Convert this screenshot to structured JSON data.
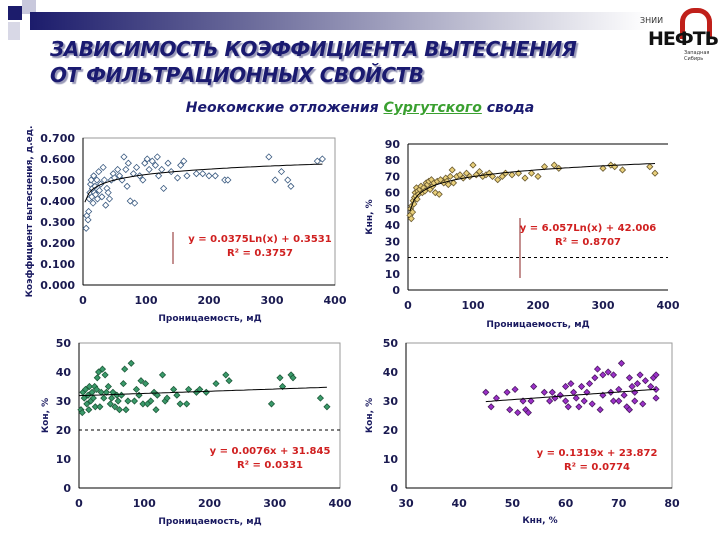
{
  "header": {
    "title_line1": "ЗАВИСИМОСТЬ КОЭФФИЦИЕНТА ВЫТЕСНЕНИЯ",
    "title_line2": "ОТ ФИЛЬТРАЦИОННЫХ СВОЙСТВ",
    "subtitle_pre": "Неокомские отложения ",
    "subtitle_hl": "Сургутского",
    "subtitle_post": " свода",
    "logo_top": "ЗНИИ",
    "logo_main": "НЕФТЬ",
    "logo_sub": "Западная Сибирь"
  },
  "colors": {
    "title": "#1a1a70",
    "equation": "#d02020",
    "highlight": "#3aa030"
  },
  "chart_data": [
    {
      "type": "scatter",
      "xlabel": "Проницаемость, мД",
      "ylabel": "Коэффициент вытеснения, д.ед.",
      "xlim": [
        0,
        400
      ],
      "ylim": [
        0,
        0.7
      ],
      "xticks": [
        "0",
        "100",
        "200",
        "300",
        "400"
      ],
      "yticks": [
        "0.000",
        "0.100",
        "0.200",
        "0.300",
        "0.400",
        "0.500",
        "0.600",
        "0.700"
      ],
      "marker_color": "#ffffff",
      "marker_stroke": "#3a5a80",
      "trend": {
        "kind": "log",
        "a": 0.0375,
        "b": 0.3531,
        "from": 3,
        "to": 380
      },
      "equation": "y = 0.0375Ln(x) + 0.3531",
      "r2": "R² = 0.3757",
      "points": [
        [
          5,
          0.27
        ],
        [
          6,
          0.33
        ],
        [
          8,
          0.31
        ],
        [
          9,
          0.35
        ],
        [
          10,
          0.41
        ],
        [
          11,
          0.44
        ],
        [
          12,
          0.48
        ],
        [
          13,
          0.5
        ],
        [
          14,
          0.42
        ],
        [
          15,
          0.46
        ],
        [
          16,
          0.39
        ],
        [
          17,
          0.52
        ],
        [
          18,
          0.44
        ],
        [
          19,
          0.47
        ],
        [
          20,
          0.43
        ],
        [
          22,
          0.5
        ],
        [
          23,
          0.41
        ],
        [
          25,
          0.54
        ],
        [
          26,
          0.45
        ],
        [
          28,
          0.48
        ],
        [
          30,
          0.42
        ],
        [
          32,
          0.56
        ],
        [
          34,
          0.5
        ],
        [
          36,
          0.38
        ],
        [
          38,
          0.46
        ],
        [
          40,
          0.44
        ],
        [
          42,
          0.41
        ],
        [
          45,
          0.5
        ],
        [
          48,
          0.53
        ],
        [
          50,
          0.51
        ],
        [
          55,
          0.55
        ],
        [
          58,
          0.52
        ],
        [
          62,
          0.5
        ],
        [
          65,
          0.61
        ],
        [
          68,
          0.55
        ],
        [
          70,
          0.47
        ],
        [
          72,
          0.58
        ],
        [
          75,
          0.4
        ],
        [
          80,
          0.53
        ],
        [
          82,
          0.39
        ],
        [
          85,
          0.56
        ],
        [
          90,
          0.52
        ],
        [
          95,
          0.5
        ],
        [
          98,
          0.58
        ],
        [
          102,
          0.6
        ],
        [
          105,
          0.55
        ],
        [
          110,
          0.59
        ],
        [
          115,
          0.57
        ],
        [
          118,
          0.61
        ],
        [
          120,
          0.52
        ],
        [
          125,
          0.55
        ],
        [
          128,
          0.46
        ],
        [
          135,
          0.58
        ],
        [
          140,
          0.54
        ],
        [
          150,
          0.51
        ],
        [
          155,
          0.57
        ],
        [
          160,
          0.59
        ],
        [
          165,
          0.52
        ],
        [
          180,
          0.53
        ],
        [
          190,
          0.53
        ],
        [
          200,
          0.52
        ],
        [
          210,
          0.52
        ],
        [
          225,
          0.5
        ],
        [
          230,
          0.5
        ],
        [
          295,
          0.61
        ],
        [
          305,
          0.5
        ],
        [
          315,
          0.54
        ],
        [
          325,
          0.5
        ],
        [
          330,
          0.47
        ],
        [
          372,
          0.59
        ],
        [
          380,
          0.6
        ]
      ]
    },
    {
      "type": "scatter",
      "xlabel": "Проницаемость, мД",
      "ylabel": "Кнн, %",
      "xlim": [
        0,
        400
      ],
      "ylim": [
        0,
        90
      ],
      "xticks": [
        "0",
        "100",
        "200",
        "300",
        "400"
      ],
      "yticks": [
        "0",
        "10",
        "20",
        "30",
        "40",
        "50",
        "60",
        "70",
        "80",
        "90"
      ],
      "marker_color": "#e8cf7a",
      "marker_stroke": "#6a5a30",
      "cutoff": 20,
      "trend": {
        "kind": "log",
        "a": 6.057,
        "b": 42.006,
        "from": 3,
        "to": 380
      },
      "equation": "y = 6.057Ln(x) + 42.006",
      "r2": "R² = 0.8707",
      "points": [
        [
          3,
          46
        ],
        [
          4,
          50
        ],
        [
          5,
          44
        ],
        [
          6,
          52
        ],
        [
          7,
          48
        ],
        [
          8,
          55
        ],
        [
          9,
          53
        ],
        [
          10,
          57
        ],
        [
          11,
          60
        ],
        [
          12,
          58
        ],
        [
          13,
          63
        ],
        [
          14,
          56
        ],
        [
          15,
          61
        ],
        [
          16,
          59
        ],
        [
          18,
          62
        ],
        [
          20,
          64
        ],
        [
          22,
          60
        ],
        [
          24,
          63
        ],
        [
          26,
          61
        ],
        [
          28,
          66
        ],
        [
          30,
          65
        ],
        [
          32,
          67
        ],
        [
          34,
          62
        ],
        [
          36,
          68
        ],
        [
          38,
          64
        ],
        [
          40,
          66
        ],
        [
          42,
          60
        ],
        [
          45,
          67
        ],
        [
          48,
          59
        ],
        [
          50,
          68
        ],
        [
          55,
          66
        ],
        [
          58,
          69
        ],
        [
          60,
          67
        ],
        [
          62,
          65
        ],
        [
          65,
          70
        ],
        [
          68,
          74
        ],
        [
          70,
          66
        ],
        [
          75,
          70
        ],
        [
          80,
          71
        ],
        [
          85,
          69
        ],
        [
          90,
          72
        ],
        [
          95,
          70
        ],
        [
          100,
          77
        ],
        [
          105,
          71
        ],
        [
          110,
          73
        ],
        [
          115,
          70
        ],
        [
          120,
          71
        ],
        [
          125,
          72
        ],
        [
          130,
          70
        ],
        [
          138,
          68
        ],
        [
          145,
          70
        ],
        [
          150,
          72
        ],
        [
          160,
          71
        ],
        [
          170,
          72
        ],
        [
          180,
          69
        ],
        [
          190,
          72
        ],
        [
          200,
          70
        ],
        [
          210,
          76
        ],
        [
          225,
          77
        ],
        [
          232,
          75
        ],
        [
          300,
          75
        ],
        [
          312,
          77
        ],
        [
          318,
          76
        ],
        [
          330,
          74
        ],
        [
          372,
          76
        ],
        [
          380,
          72
        ]
      ]
    },
    {
      "type": "scatter",
      "xlabel": "Проницаемость, мД",
      "ylabel": "Кон, %",
      "xlim": [
        0,
        400
      ],
      "ylim": [
        0,
        50
      ],
      "xticks": [
        "0",
        "100",
        "200",
        "300",
        "400"
      ],
      "yticks": [
        "0",
        "10",
        "20",
        "30",
        "40",
        "50"
      ],
      "marker_color": "#3a9a6a",
      "marker_stroke": "#1e5a3a",
      "cutoff": 20,
      "trend": {
        "kind": "linear",
        "a": 0.0076,
        "b": 31.845,
        "from": 0,
        "to": 380
      },
      "equation": "y = 0.0076x + 31.845",
      "r2": "R² = 0.0331",
      "points": [
        [
          3,
          27
        ],
        [
          5,
          26
        ],
        [
          6,
          33
        ],
        [
          8,
          31
        ],
        [
          10,
          34
        ],
        [
          12,
          29
        ],
        [
          14,
          32
        ],
        [
          15,
          27
        ],
        [
          16,
          35
        ],
        [
          18,
          30
        ],
        [
          20,
          33
        ],
        [
          22,
          31
        ],
        [
          24,
          35
        ],
        [
          25,
          28
        ],
        [
          27,
          34
        ],
        [
          28,
          38
        ],
        [
          30,
          40
        ],
        [
          32,
          28
        ],
        [
          34,
          33
        ],
        [
          36,
          41
        ],
        [
          38,
          31
        ],
        [
          40,
          39
        ],
        [
          42,
          33
        ],
        [
          45,
          35
        ],
        [
          48,
          29
        ],
        [
          50,
          31
        ],
        [
          52,
          33
        ],
        [
          55,
          28
        ],
        [
          58,
          32
        ],
        [
          60,
          30
        ],
        [
          62,
          27
        ],
        [
          65,
          32
        ],
        [
          68,
          36
        ],
        [
          70,
          41
        ],
        [
          72,
          27
        ],
        [
          75,
          30
        ],
        [
          80,
          43
        ],
        [
          85,
          30
        ],
        [
          88,
          34
        ],
        [
          92,
          32
        ],
        [
          95,
          37
        ],
        [
          98,
          29
        ],
        [
          102,
          36
        ],
        [
          105,
          29
        ],
        [
          110,
          30
        ],
        [
          115,
          33
        ],
        [
          118,
          27
        ],
        [
          120,
          32
        ],
        [
          128,
          39
        ],
        [
          132,
          30
        ],
        [
          135,
          31
        ],
        [
          145,
          34
        ],
        [
          150,
          32
        ],
        [
          155,
          29
        ],
        [
          165,
          29
        ],
        [
          168,
          34
        ],
        [
          180,
          33
        ],
        [
          185,
          34
        ],
        [
          195,
          33
        ],
        [
          210,
          36
        ],
        [
          225,
          39
        ],
        [
          230,
          37
        ],
        [
          295,
          29
        ],
        [
          308,
          38
        ],
        [
          312,
          35
        ],
        [
          325,
          39
        ],
        [
          328,
          38
        ],
        [
          370,
          31
        ],
        [
          380,
          28
        ]
      ]
    },
    {
      "type": "scatter",
      "xlabel": "Кнн, %",
      "ylabel": "Кон, %",
      "xlim": [
        30,
        80
      ],
      "ylim": [
        0,
        50
      ],
      "xticks": [
        "30",
        "40",
        "50",
        "60",
        "70",
        "80"
      ],
      "yticks": [
        "0",
        "10",
        "20",
        "30",
        "40",
        "50"
      ],
      "marker_color": "#9b30c8",
      "marker_stroke": "#4a1a60",
      "trend": {
        "kind": "linear",
        "a": 0.1319,
        "b": 23.872,
        "from": 45,
        "to": 77
      },
      "equation": "y = 0.1319x + 23.872",
      "r2": "R² = 0.0774",
      "points": [
        [
          45,
          33
        ],
        [
          46,
          28
        ],
        [
          47,
          31
        ],
        [
          49,
          33
        ],
        [
          49.5,
          27
        ],
        [
          50.5,
          34
        ],
        [
          51,
          26
        ],
        [
          52,
          30
        ],
        [
          52.5,
          27
        ],
        [
          53,
          26
        ],
        [
          53.5,
          30
        ],
        [
          54,
          35
        ],
        [
          56,
          33
        ],
        [
          57,
          30
        ],
        [
          57.5,
          33
        ],
        [
          58,
          31
        ],
        [
          59,
          32
        ],
        [
          60,
          35
        ],
        [
          60,
          30
        ],
        [
          60.5,
          28
        ],
        [
          61,
          36
        ],
        [
          61.5,
          33
        ],
        [
          62,
          31
        ],
        [
          62.5,
          28
        ],
        [
          63,
          35
        ],
        [
          63.5,
          30
        ],
        [
          64,
          33
        ],
        [
          64.5,
          36
        ],
        [
          65,
          29
        ],
        [
          65.5,
          38
        ],
        [
          66,
          41
        ],
        [
          66.5,
          27
        ],
        [
          67,
          39
        ],
        [
          67,
          32
        ],
        [
          68,
          40
        ],
        [
          68.5,
          33
        ],
        [
          69,
          30
        ],
        [
          69,
          39
        ],
        [
          70,
          34
        ],
        [
          70,
          30
        ],
        [
          70.5,
          43
        ],
        [
          71,
          32
        ],
        [
          71.5,
          28
        ],
        [
          72,
          38
        ],
        [
          72,
          27
        ],
        [
          72.5,
          35
        ],
        [
          73,
          33
        ],
        [
          73,
          30
        ],
        [
          73.5,
          36
        ],
        [
          74,
          39
        ],
        [
          74.5,
          29
        ],
        [
          75,
          37
        ],
        [
          76,
          35
        ],
        [
          76.5,
          38
        ],
        [
          77,
          34
        ],
        [
          77,
          31
        ],
        [
          77,
          39
        ]
      ]
    }
  ]
}
